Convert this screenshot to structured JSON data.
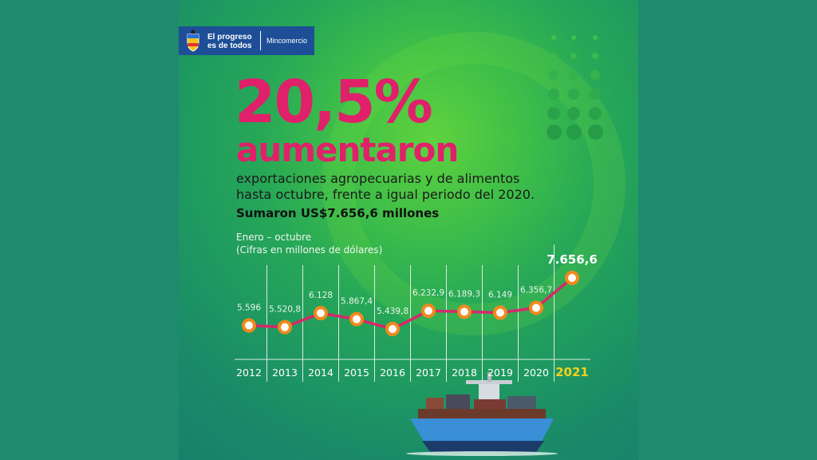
{
  "logo": {
    "line1": "El progreso",
    "line2": "es de todos",
    "ministry": "Mincomercio"
  },
  "headline": {
    "big": "20,5%",
    "word": "aumentaron",
    "line1": "exportaciones agropecuarias y de alimentos",
    "line2": "hasta octubre, frente a igual periodo del 2020.",
    "total": "Sumaron US$7.656,6 millones"
  },
  "chart_caption": {
    "line1": "Enero – octubre",
    "line2": "(Cifras en millones de dólares)"
  },
  "colors": {
    "line": "#d6286a",
    "marker_fill": "#ffffff",
    "marker_stroke": "#f08a1e",
    "highlight_year": "#f2d21b",
    "label": "#eaf3ea",
    "headline": "#e0206a"
  },
  "chart_data": {
    "type": "line",
    "title": "",
    "xlabel": "",
    "ylabel": "",
    "categories": [
      "2012",
      "2013",
      "2014",
      "2015",
      "2016",
      "2017",
      "2018",
      "2019",
      "2020",
      "2021"
    ],
    "values": [
      5596,
      5520.8,
      6128,
      5867.4,
      5439.8,
      6232.9,
      6189.3,
      6149,
      6356.7,
      7656.6
    ],
    "value_labels": [
      "5.596",
      "5.520,8",
      "6.128",
      "5.867,4",
      "5.439,8",
      "6.232,9",
      "6.189,3",
      "6.149",
      "6.356,7",
      "7.656,6"
    ],
    "highlight_category": "2021",
    "grid": "vertical"
  }
}
